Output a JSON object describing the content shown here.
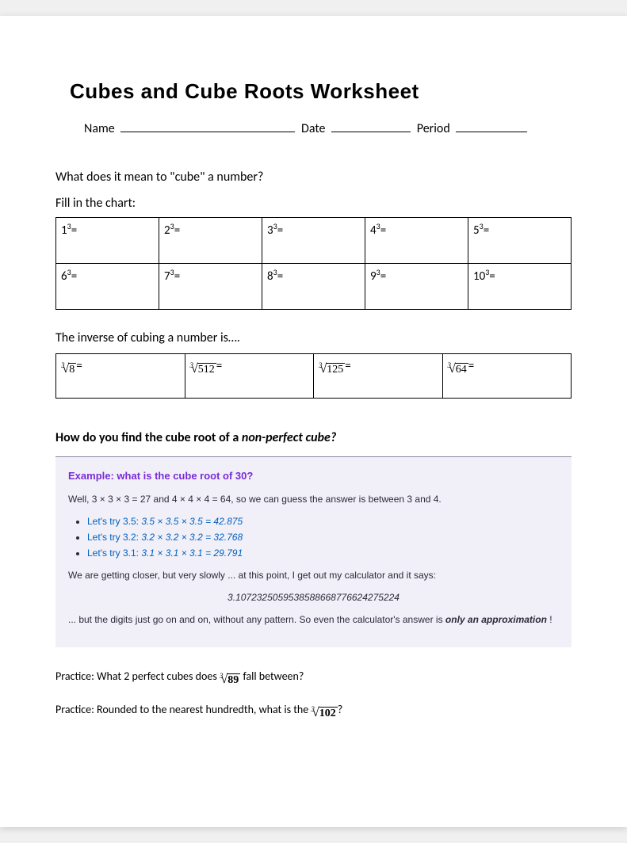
{
  "title": "Cubes and Cube Roots Worksheet",
  "header": {
    "name_label": "Name",
    "date_label": "Date",
    "period_label": "Period",
    "name_blank_width": 220,
    "date_blank_width": 100,
    "period_blank_width": 90
  },
  "q1": "What does it mean to \"cube\" a number?",
  "fill_label": "Fill in the chart:",
  "cubes": [
    [
      "1",
      "2",
      "3",
      "4",
      "5"
    ],
    [
      "6",
      "7",
      "8",
      "9",
      "10"
    ]
  ],
  "cube_exponent": "3",
  "inverse_text": "The inverse of cubing a number is….",
  "roots": [
    "8",
    "512",
    "125",
    "64"
  ],
  "root_index": "3",
  "find_root_q_prefix": "How do you find the cube root of a ",
  "find_root_q_em": "non-perfect cube?",
  "example": {
    "title": "Example: what is the cube root of 30?",
    "intro": "Well, 3 × 3 × 3 = 27 and 4 × 4 × 4 = 64, so we can guess the answer is between 3 and 4.",
    "tries": [
      {
        "label": "Let's try 3.5:",
        "calc": "3.5 × 3.5 × 3.5 = 42.875"
      },
      {
        "label": "Let's try 3.2:",
        "calc": "3.2 × 3.2 × 3.2 = 32.768"
      },
      {
        "label": "Let's try 3.1:",
        "calc": "3.1 × 3.1 × 3.1 = 29.791"
      }
    ],
    "closer": "We are getting closer, but very slowly ... at this point, I get out my calculator and it says:",
    "long_number": "3.1072325059538588668776624275224",
    "tail_before": "... but the digits just go on and on, without any pattern. So even the calculator's answer is ",
    "tail_bold": "only an approximation",
    "tail_after": " !",
    "background_color": "#f1f0f8",
    "title_color": "#7a2bd8",
    "try_color": "#0060c0"
  },
  "practice1_before": "Practice: What 2 perfect cubes does ",
  "practice1_radicand": "89",
  "practice1_after": " fall between?",
  "practice2_before": "Practice: Rounded to the nearest hundredth, what is the ",
  "practice2_radicand": "102",
  "practice2_after": "?"
}
